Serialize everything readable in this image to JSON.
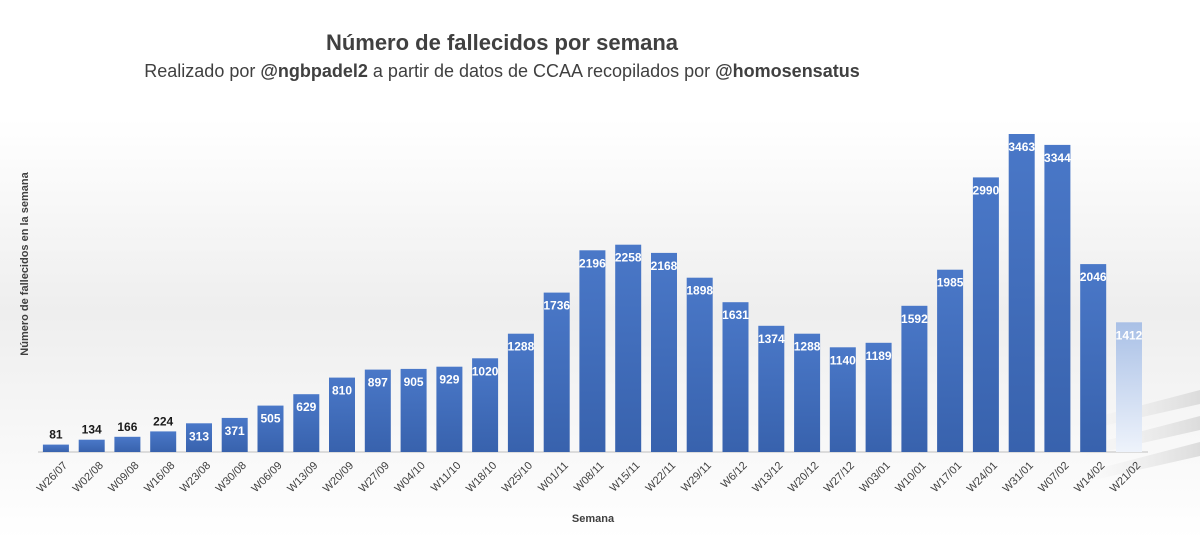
{
  "chart_data": {
    "type": "bar",
    "title": "Número de fallecidos por semana",
    "subtitle": {
      "prefix": "Realizado por ",
      "author": "@ngbpadel2",
      "middle": " a partir de datos de CCAA recopilados por ",
      "source": "@homosensatus"
    },
    "xlabel": "Semana",
    "ylabel": "Número de fallecidos en la semana",
    "categories": [
      "W26/07",
      "W02/08",
      "W09/08",
      "W16/08",
      "W23/08",
      "W30/08",
      "W06/09",
      "W13/09",
      "W20/09",
      "W27/09",
      "W04/10",
      "W11/10",
      "W18/10",
      "W25/10",
      "W01/11",
      "W08/11",
      "W15/11",
      "W22/11",
      "W29/11",
      "W6/12",
      "W13/12",
      "W20/12",
      "W27/12",
      "W03/01",
      "W10/01",
      "W17/01",
      "W24/01",
      "W31/01",
      "W07/02",
      "W14/02",
      "W21/02"
    ],
    "values": [
      81,
      134,
      166,
      224,
      313,
      371,
      505,
      629,
      810,
      897,
      905,
      929,
      1020,
      1288,
      1736,
      2196,
      2258,
      2168,
      1898,
      1631,
      1374,
      1288,
      1140,
      1189,
      1592,
      1985,
      2990,
      3463,
      3344,
      2046,
      1412
    ],
    "ylim": [
      0,
      3600
    ],
    "grid": false,
    "legend": "none",
    "bar_color": "#4472c4",
    "bar_color_dark": "#3a63ad",
    "last_bar_color": "#b4c7e7",
    "label_color_inside": "#ffffff",
    "label_color_outside": "#1a1a1a"
  }
}
